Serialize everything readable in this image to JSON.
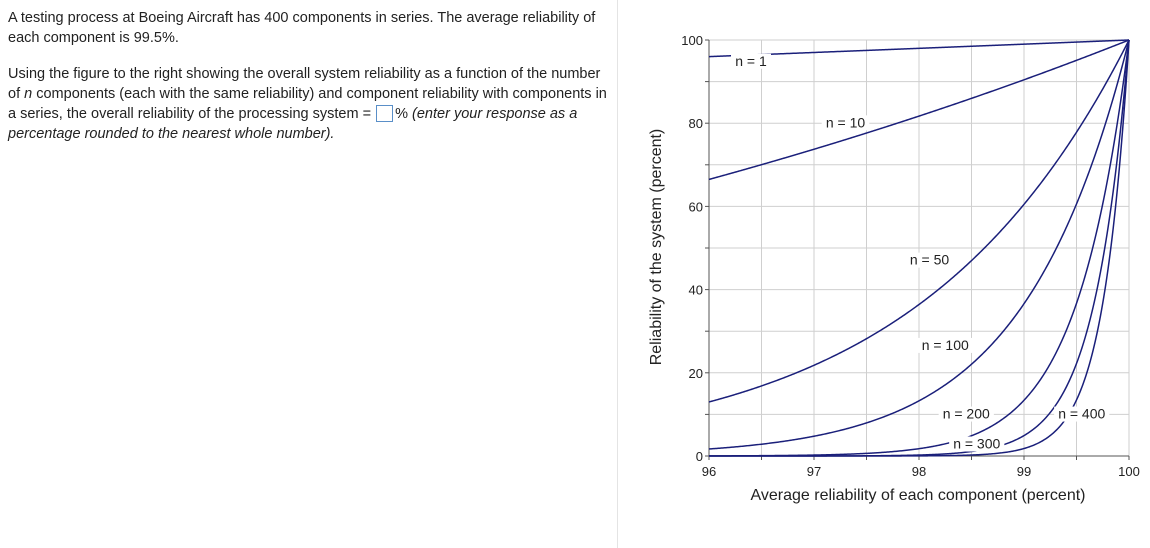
{
  "question": {
    "intro": "A testing process at Boeing Aircraft has 400 components in series. The average reliability of each component is 99.5%.",
    "prompt_before_n": "Using the figure to the right showing the overall system reliability as a function of the number of ",
    "n_var": "n",
    "prompt_after_n": " components (each with the same reliability) and component reliability with components in a series, the overall reliability of the processing system = ",
    "answer_value": "",
    "percent_sign": "%",
    "hint": " (enter your response as a percentage rounded to the nearest whole number)."
  },
  "chart_data": {
    "type": "line",
    "xlabel": "Average reliability of each component (percent)",
    "ylabel": "Reliability of the system (percent)",
    "xlim": [
      96,
      100
    ],
    "ylim": [
      0,
      100
    ],
    "x_ticks": [
      96,
      97,
      98,
      99,
      100
    ],
    "y_ticks": [
      0,
      20,
      40,
      60,
      80,
      100
    ],
    "grid": true,
    "series": [
      {
        "name": "n = 1",
        "n": 1,
        "label_at": [
          96.4,
          93.8
        ]
      },
      {
        "name": "n = 10",
        "n": 10,
        "label_at": [
          97.3,
          79.0
        ]
      },
      {
        "name": "n = 50",
        "n": 50,
        "label_at": [
          98.1,
          46.0
        ]
      },
      {
        "name": "n = 100",
        "n": 100,
        "label_at": [
          98.25,
          25.5
        ]
      },
      {
        "name": "n = 200",
        "n": 200,
        "label_at": [
          98.45,
          9.0
        ]
      },
      {
        "name": "n = 300",
        "n": 300,
        "label_at": [
          98.55,
          1.8
        ]
      },
      {
        "name": "n = 400",
        "n": 400,
        "label_at": [
          99.55,
          9.0
        ]
      }
    ]
  }
}
